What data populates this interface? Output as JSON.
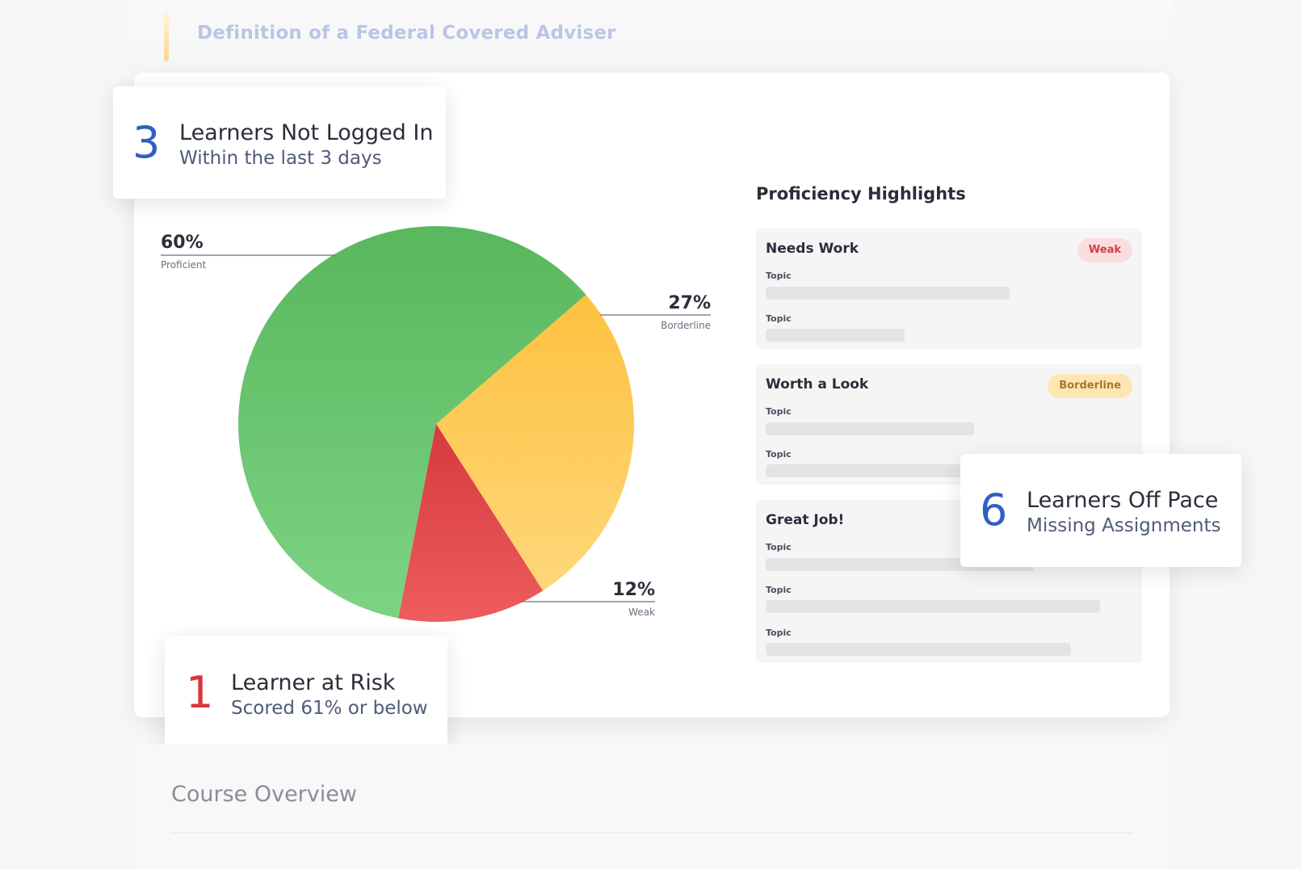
{
  "header": {
    "title": "Definition of a Federal Covered Adviser"
  },
  "stats": {
    "not_logged_in": {
      "number": "3",
      "title": "Learners Not Logged In",
      "subtitle": "Within the last 3 days",
      "color": "#2f5fc4"
    },
    "at_risk": {
      "number": "1",
      "title": "Learner at Risk",
      "subtitle": "Scored 61% or below",
      "color": "#d8363c"
    },
    "off_pace": {
      "number": "6",
      "title": "Learners Off Pace",
      "subtitle": "Missing Assignments",
      "color": "#2f5fc4"
    }
  },
  "chart_data": {
    "type": "pie",
    "slices": [
      {
        "name": "Proficient",
        "value": 60,
        "label": "60%",
        "color": "#63c266"
      },
      {
        "name": "Borderline",
        "value": 27,
        "label": "27%",
        "color": "#fdc94d"
      },
      {
        "name": "Weak",
        "value": 12,
        "label": "12%",
        "color": "#e04a4e"
      }
    ]
  },
  "proficiency": {
    "title": "Proficiency Highlights",
    "cards": [
      {
        "title": "Needs Work",
        "badge": "Weak",
        "topics": [
          "Topic",
          "Topic"
        ]
      },
      {
        "title": "Worth a Look",
        "badge": "Borderline",
        "topics": [
          "Topic",
          "Topic"
        ]
      },
      {
        "title": "Great Job!",
        "topics": [
          "Topic",
          "Topic",
          "Topic"
        ]
      }
    ]
  },
  "overview": {
    "title": "Course Overview"
  }
}
